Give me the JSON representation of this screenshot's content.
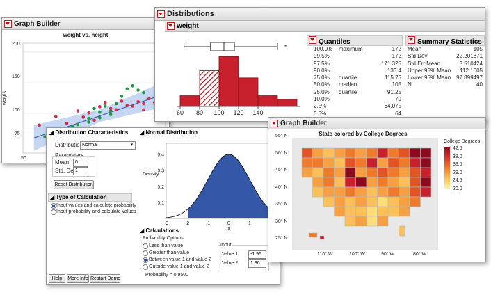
{
  "graph_builder": {
    "window_title": "Graph Builder",
    "chart_title": "weight vs. height",
    "y_axis_label": "weight",
    "y_ticks": [
      "200",
      "150",
      "100",
      "75"
    ],
    "x_tick_first": "50"
  },
  "distributions": {
    "window_title": "Distributions",
    "variable": "weight",
    "histogram_ticks": [
      "60",
      "80",
      "100",
      "120",
      "140"
    ],
    "outlier_marker": "*",
    "quantiles": {
      "title": "Quantiles",
      "rows": [
        {
          "pct": "100.0%",
          "name": "maximum",
          "value": "172"
        },
        {
          "pct": "99.5%",
          "name": "",
          "value": "172"
        },
        {
          "pct": "97.5%",
          "name": "",
          "value": "171.325"
        },
        {
          "pct": "90.0%",
          "name": "",
          "value": "133.4"
        },
        {
          "pct": "75.0%",
          "name": "quartile",
          "value": "115.75"
        },
        {
          "pct": "50.0%",
          "name": "median",
          "value": "105"
        },
        {
          "pct": "25.0%",
          "name": "quartile",
          "value": "91.25"
        },
        {
          "pct": "10.0%",
          "name": "",
          "value": "79"
        },
        {
          "pct": "2.5%",
          "name": "",
          "value": "64.075"
        },
        {
          "pct": "0.5%",
          "name": "",
          "value": "64"
        }
      ]
    },
    "summary": {
      "title": "Summary Statistics",
      "rows": [
        {
          "name": "Mean",
          "value": "105"
        },
        {
          "name": "Std Dev",
          "value": "22.201871"
        },
        {
          "name": "Std Err Mean",
          "value": "3.510424"
        },
        {
          "name": "Upper 95% Mean",
          "value": "112.1005"
        },
        {
          "name": "Lower 95% Mean",
          "value": "97.899497"
        },
        {
          "name": "N",
          "value": "40"
        }
      ]
    }
  },
  "distribution_calc": {
    "characteristics_title": "Distribution Characteristics",
    "distribution_label": "Distribution",
    "distribution_value": "Normal",
    "parameters_label": "Parameters",
    "mean_label": "Mean",
    "mean_value": "0",
    "std_label": "Std. Dev.",
    "std_value": "1",
    "reset_button": "Reset Distribution",
    "calc_type_title": "Type of Calculation",
    "calc_options": [
      "Input values and calculate probability",
      "Input probability and calculate values"
    ],
    "normal_title": "Normal Distribution",
    "density_label": "Density",
    "x_label": "X",
    "y_ticks": [
      "0.4",
      "0.3",
      "0.2",
      "0.1"
    ],
    "x_ticks": [
      "-3",
      "-2",
      "-1",
      "0",
      "1",
      "2"
    ],
    "calculations_title": "Calculations",
    "prob_options_label": "Probability Options",
    "prob_options": [
      "Less than value",
      "Greater than value",
      "Between value 1 and value 2",
      "Outside value 1 and value 2"
    ],
    "input_label": "Input",
    "value1_label": "Value 1:",
    "value1": "-1.96",
    "value2_label": "Value 2:",
    "value2": "1.96",
    "probability": "Probability = 0.9500",
    "help_button": "Help",
    "more_info_button": "More Info",
    "restart_button": "Restart Demo"
  },
  "map_window": {
    "window_title": "Graph Builder",
    "chart_title": "State colored by College Degrees",
    "legend_title": "College Degrees",
    "legend_values": [
      "42.5",
      "38.0",
      "33.5",
      "29.0",
      "24.5",
      "20.0"
    ],
    "lat_ticks": [
      "55° N",
      "50° N",
      "45° N",
      "40° N",
      "35° N",
      "30° N",
      "25° N"
    ],
    "lon_ticks": [
      "110° W",
      "100° W",
      "90° W",
      "80° W"
    ]
  },
  "colors": {
    "hist_bar": "#c8202c",
    "normal_fill": "#3557a8",
    "scatter_green": "#1e9a3c",
    "scatter_red": "#d0304a",
    "map_high": "#8b0a1e",
    "map_low": "#fff3a0"
  },
  "chart_data": [
    {
      "type": "scatter",
      "title": "weight vs. height",
      "ylabel": "weight",
      "series": [
        {
          "name": "",
          "color": "green",
          "points": [
            [
              52,
              62
            ],
            [
              54,
              70
            ],
            [
              57,
              79
            ],
            [
              58,
              82
            ],
            [
              60,
              92
            ],
            [
              60,
              86
            ],
            [
              61,
              108
            ],
            [
              62,
              102
            ],
            [
              62,
              93
            ],
            [
              63,
              112
            ],
            [
              64,
              98
            ],
            [
              64,
              104
            ],
            [
              65,
              116
            ],
            [
              66,
              128
            ],
            [
              67,
              140
            ],
            [
              68,
              145
            ],
            [
              69,
              138
            ],
            [
              70,
              134
            ]
          ]
        },
        {
          "name": "",
          "color": "red",
          "points": [
            [
              51,
              81
            ],
            [
              54,
              95
            ],
            [
              56,
              84
            ],
            [
              58,
              104
            ],
            [
              59,
              94
            ],
            [
              60,
              101
            ],
            [
              61,
              89
            ],
            [
              62,
              111
            ],
            [
              63,
              118
            ],
            [
              64,
              108
            ],
            [
              65,
              106
            ],
            [
              66,
              120
            ],
            [
              67,
              113
            ],
            [
              68,
              112
            ],
            [
              69,
              119
            ],
            [
              70,
              116
            ],
            [
              71,
              124
            ],
            [
              72,
              118
            ],
            [
              70,
              106
            ]
          ]
        }
      ]
    },
    {
      "type": "bar",
      "title": "weight",
      "categories": [
        "60-80",
        "80-100",
        "100-120",
        "120-140",
        "140-160",
        "160-180"
      ],
      "values": [
        3,
        10,
        14,
        8,
        3,
        2
      ]
    },
    {
      "type": "area",
      "title": "Normal Distribution",
      "xlabel": "X",
      "ylabel": "Density",
      "mean": 0,
      "std": 1,
      "shaded_from": -1.96,
      "shaded_to": 1.96,
      "xlim": [
        -3,
        2
      ],
      "ylim": [
        0,
        0.45
      ]
    }
  ]
}
